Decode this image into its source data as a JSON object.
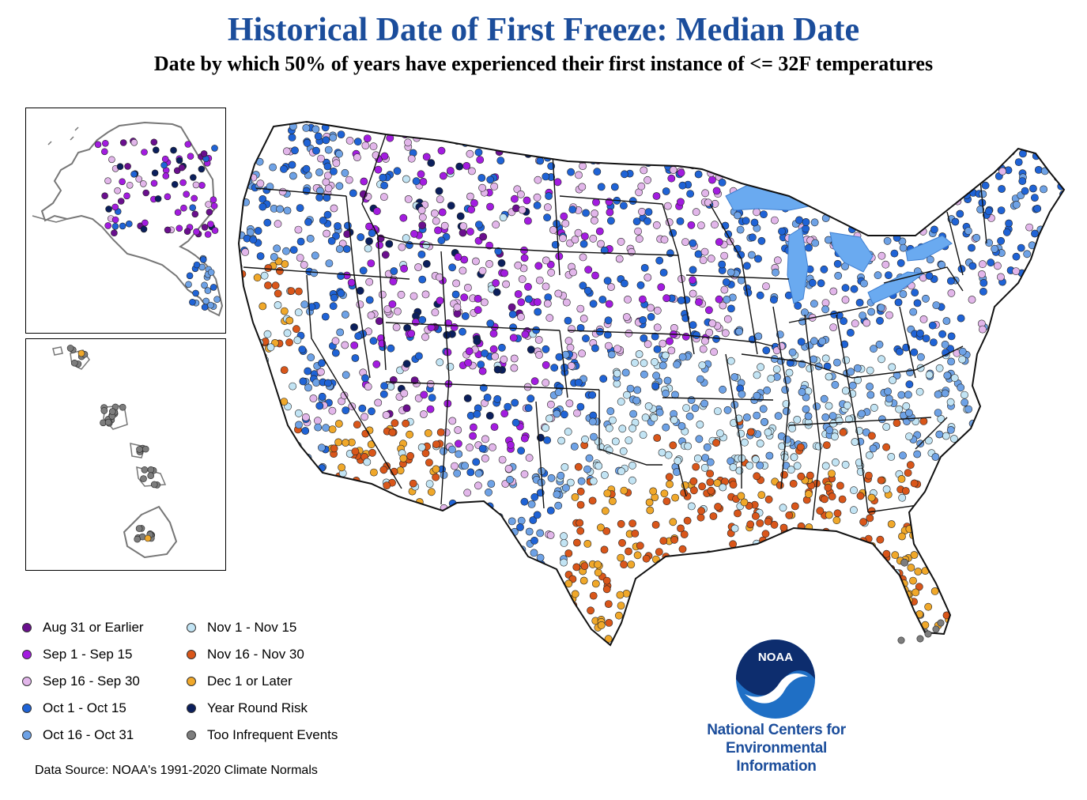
{
  "title": "Historical Date of First Freeze: Median Date",
  "subtitle": "Date by which 50% of years have experienced their first instance of <= 32F temperatures",
  "legend": [
    {
      "label": "Aug 31 or Earlier",
      "color": "#6a0f8e"
    },
    {
      "label": "Sep 1 - Sep 15",
      "color": "#a31ce0"
    },
    {
      "label": "Sep 16 - Sep 30",
      "color": "#e2b6ea"
    },
    {
      "label": "Oct 1 - Oct 15",
      "color": "#1f63d6"
    },
    {
      "label": "Oct 16 - Oct 31",
      "color": "#6ea2e6"
    },
    {
      "label": "Nov 1 - Nov 15",
      "color": "#c2e4f4"
    },
    {
      "label": "Nov 16 - Nov 30",
      "color": "#d9561a"
    },
    {
      "label": "Dec 1 or Later",
      "color": "#f0a82a"
    },
    {
      "label": "Year Round Risk",
      "color": "#0b1f5c"
    },
    {
      "label": "Too Infrequent Events",
      "color": "#7d7d7d"
    }
  ],
  "source": "Data Source: NOAA's 1991-2020 Climate Normals",
  "logo": {
    "text": "NOAA",
    "org_lines": [
      "National Centers for",
      "Environmental",
      "Information"
    ]
  },
  "colors": {
    "title": "#1b4d9b",
    "lakes": "#6aaaf0",
    "noaa_blue": "#1f6fc5"
  }
}
